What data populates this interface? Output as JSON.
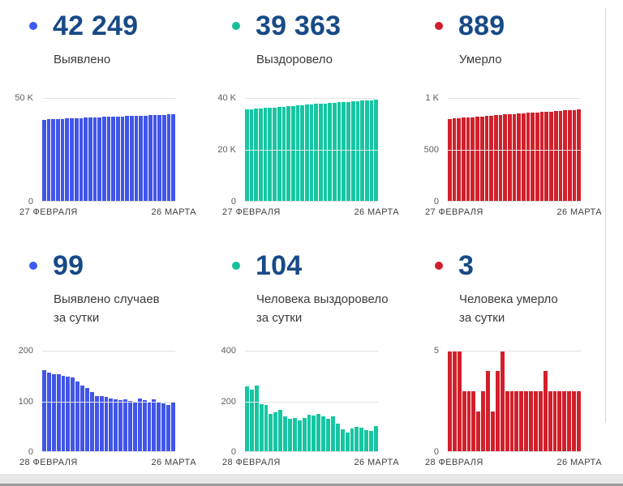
{
  "panels": [
    {
      "value": "42 249",
      "label": "Выявлено",
      "label2": "",
      "dot_color": "#3d5bf0"
    },
    {
      "value": "39 363",
      "label": "Выздоровело",
      "label2": "",
      "dot_color": "#17bf9d"
    },
    {
      "value": "889",
      "label": "Умерло",
      "label2": "",
      "dot_color": "#ce1f2a"
    },
    {
      "value": "99",
      "label": "Выявлено случаев",
      "label2": "за сутки",
      "dot_color": "#3d5bf0"
    },
    {
      "value": "104",
      "label": "Человека выздоровело",
      "label2": "за сутки",
      "dot_color": "#17bf9d"
    },
    {
      "value": "3",
      "label": "Человека умерло",
      "label2": "за сутки",
      "dot_color": "#ce1f2a"
    }
  ],
  "chart_data": [
    {
      "type": "bar",
      "title": "Выявлено (всего)",
      "color": "#4155e8",
      "ylim": [
        0,
        50000
      ],
      "yticks": [
        {
          "value": 50000,
          "label": "50 K"
        },
        {
          "value": 0,
          "label": "0"
        }
      ],
      "x_start": "27 ФЕВРАЛЯ",
      "x_end": "26 МАРТА",
      "values": [
        39600,
        39700,
        39820,
        39930,
        40030,
        40120,
        40210,
        40300,
        40390,
        40480,
        40560,
        40650,
        40740,
        40830,
        40920,
        41000,
        41080,
        41170,
        41250,
        41330,
        41420,
        41500,
        41580,
        41670,
        41760,
        41850,
        41950,
        42100,
        42249
      ]
    },
    {
      "type": "bar",
      "title": "Выздоровело (всего)",
      "color": "#16c6a1",
      "ylim": [
        0,
        40000
      ],
      "yticks": [
        {
          "value": 40000,
          "label": "40 K"
        },
        {
          "value": 20000,
          "label": "20 K"
        },
        {
          "value": 0,
          "label": "0"
        }
      ],
      "x_start": "27 ФЕВРАЛЯ",
      "x_end": "26 МАРТА",
      "values": [
        35500,
        35650,
        35800,
        35950,
        36100,
        36250,
        36400,
        36550,
        36700,
        36850,
        37000,
        37140,
        37280,
        37420,
        37560,
        37700,
        37830,
        37960,
        38090,
        38220,
        38350,
        38470,
        38590,
        38710,
        38830,
        38950,
        39080,
        39220,
        39363
      ]
    },
    {
      "type": "bar",
      "title": "Умерло (всего)",
      "color": "#d1202b",
      "ylim": [
        0,
        1000
      ],
      "yticks": [
        {
          "value": 1000,
          "label": "1 K"
        },
        {
          "value": 500,
          "label": "500"
        },
        {
          "value": 0,
          "label": "0"
        }
      ],
      "x_start": "27 ФЕВРАЛЯ",
      "x_end": "26 МАРТА",
      "values": [
        800,
        803,
        806,
        810,
        813,
        816,
        820,
        823,
        826,
        830,
        833,
        836,
        840,
        843,
        846,
        850,
        853,
        856,
        859,
        862,
        865,
        868,
        871,
        874,
        877,
        880,
        883,
        886,
        889
      ]
    },
    {
      "type": "bar",
      "title": "Выявлено случаев за сутки",
      "color": "#4155e8",
      "ylim": [
        0,
        200
      ],
      "yticks": [
        {
          "value": 200,
          "label": "200"
        },
        {
          "value": 100,
          "label": "100"
        },
        {
          "value": 0,
          "label": "0"
        }
      ],
      "x_start": "28 ФЕВРАЛЯ",
      "x_end": "26 МАРТА",
      "values": [
        162,
        157,
        154,
        153,
        151,
        149,
        147,
        139,
        132,
        126,
        119,
        111,
        110,
        109,
        106,
        104,
        103,
        104,
        101,
        99,
        105,
        102,
        99,
        104,
        100,
        96,
        93,
        99
      ]
    },
    {
      "type": "bar",
      "title": "Человека выздоровело за сутки",
      "color": "#16c6a1",
      "ylim": [
        0,
        400
      ],
      "yticks": [
        {
          "value": 400,
          "label": "400"
        },
        {
          "value": 200,
          "label": "200"
        },
        {
          "value": 0,
          "label": "0"
        }
      ],
      "x_start": "28 ФЕВРАЛЯ",
      "x_end": "26 МАРТА",
      "values": [
        260,
        245,
        262,
        190,
        186,
        152,
        158,
        165,
        140,
        131,
        133,
        126,
        136,
        148,
        145,
        150,
        141,
        132,
        140,
        113,
        90,
        78,
        92,
        100,
        95,
        88,
        84,
        104
      ]
    },
    {
      "type": "bar",
      "title": "Человека умерло за сутки",
      "color": "#d1202b",
      "ylim": [
        0,
        5
      ],
      "yticks": [
        {
          "value": 5,
          "label": "5"
        },
        {
          "value": 0,
          "label": "0"
        }
      ],
      "x_start": "28 ФЕВРАЛЯ",
      "x_end": "26 МАРТА",
      "values": [
        5,
        5,
        5,
        3,
        3,
        3,
        2,
        3,
        4,
        2,
        4,
        5,
        3,
        3,
        3,
        3,
        3,
        3,
        3,
        3,
        4,
        3,
        3,
        3,
        3,
        3,
        3,
        3
      ]
    }
  ]
}
